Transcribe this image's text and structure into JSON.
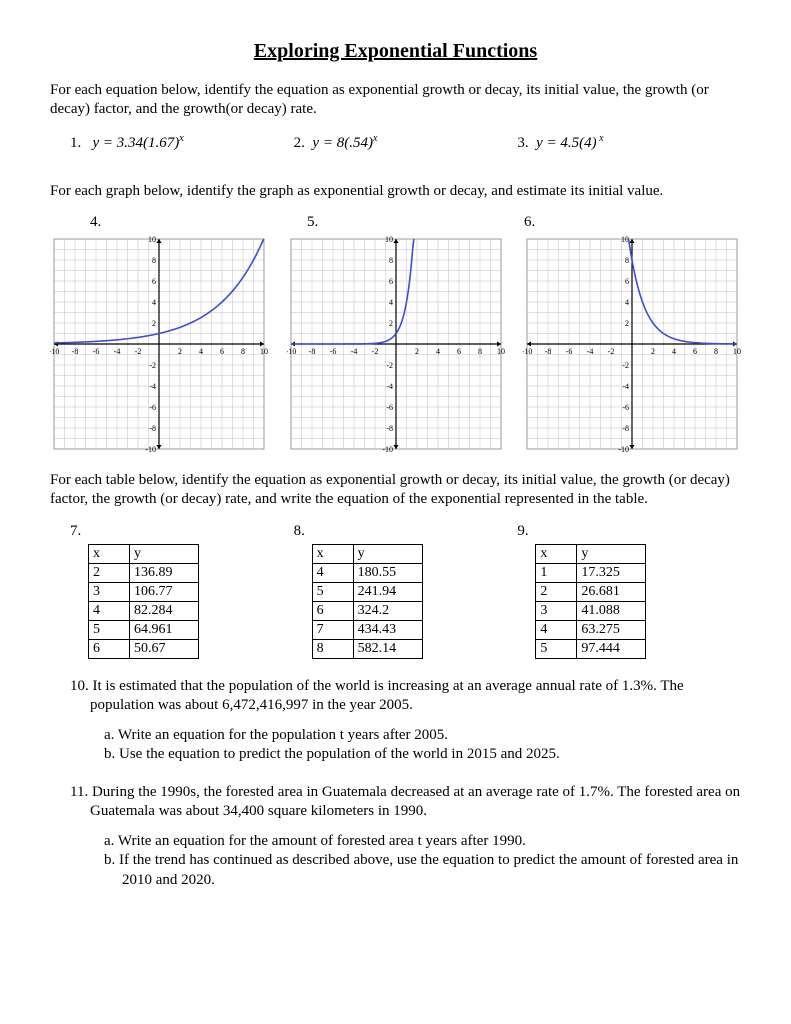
{
  "title": "Exploring Exponential Functions",
  "intro1": "For each equation below, identify the equation as exponential growth or decay, its initial value, the growth (or decay) factor, and the growth(or decay) rate.",
  "eq1": {
    "num": "1.",
    "body": "y = 3.34(1.67)",
    "exp": "x"
  },
  "eq2": {
    "num": "2.",
    "body": "y = 8(.54)",
    "exp": "x"
  },
  "eq3": {
    "num": "3.",
    "body": "y = 4.5(4)",
    "exp": " x"
  },
  "intro2": "For each graph below, identify the graph as exponential growth or decay, and estimate its initial value.",
  "gnum4": "4.",
  "gnum5": "5.",
  "gnum6": "6.",
  "graphs": {
    "xlim": [
      -10,
      10
    ],
    "ylim": [
      -10,
      10
    ],
    "ticks": [
      -10,
      -8,
      -6,
      -4,
      -2,
      2,
      4,
      6,
      8,
      10
    ],
    "axis_color": "#000000",
    "grid_color": "#bfbfbf",
    "curve_color": "#3a4fd3",
    "background": "#ffffff",
    "g4": {
      "type": "exp_growth_slow",
      "a": 1,
      "b": 1.26
    },
    "g5": {
      "type": "exp_growth_steep",
      "a": 1,
      "b": 4
    },
    "g6": {
      "type": "exp_decay",
      "a": 8,
      "b": 0.5
    }
  },
  "intro3": "For each table below, identify the equation as exponential growth or decay, its initial value, the growth (or decay) factor, the growth (or decay)  rate, and write the equation of the exponential represented in the table.",
  "tnum7": "7.",
  "tnum8": "8.",
  "tnum9": "9.",
  "thx": "x",
  "thy": "y",
  "t7": {
    "rows": [
      [
        "2",
        "136.89"
      ],
      [
        "3",
        "106.77"
      ],
      [
        "4",
        "82.284"
      ],
      [
        "5",
        "64.961"
      ],
      [
        "6",
        "50.67"
      ]
    ]
  },
  "t8": {
    "rows": [
      [
        "4",
        "180.55"
      ],
      [
        "5",
        "241.94"
      ],
      [
        "6",
        "324.2"
      ],
      [
        "7",
        "434.43"
      ],
      [
        "8",
        "582.14"
      ]
    ]
  },
  "t9": {
    "rows": [
      [
        "1",
        "17.325"
      ],
      [
        "2",
        "26.681"
      ],
      [
        "3",
        "41.088"
      ],
      [
        "4",
        "63.275"
      ],
      [
        "5",
        "97.444"
      ]
    ]
  },
  "q10": "10. It is estimated that the population of the world is increasing at an average annual rate of 1.3%. The population was about 6,472,416,997 in the year 2005.",
  "q10a": "a.   Write an equation for the population t years after 2005.",
  "q10b": "b.   Use the equation to predict the population of the world in 2015 and 2025.",
  "q11": "11. During the 1990s, the forested area in Guatemala decreased at an average rate of 1.7%.  The forested area on Guatemala was about 34,400 square kilometers in 1990.",
  "q11a": "a.   Write an equation for the amount of forested area t years after 1990.",
  "q11b": "b.   If the trend has continued as described above, use the equation to predict the amount of forested area in 2010 and 2020."
}
